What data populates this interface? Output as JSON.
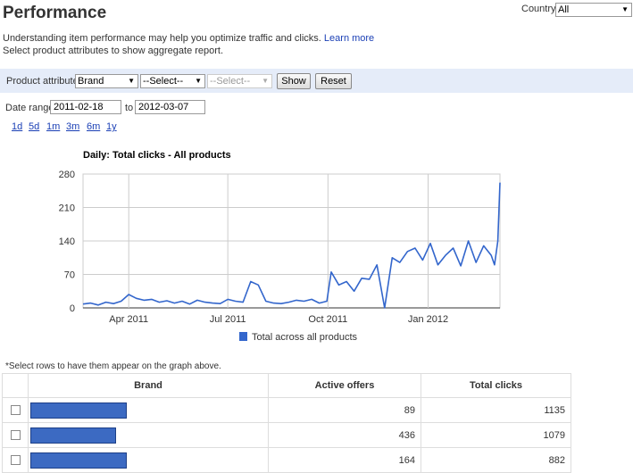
{
  "header": {
    "title": "Performance",
    "country_label": "Country:",
    "country_value": "All"
  },
  "intro": {
    "line1": "Understanding item performance may help you optimize traffic and clicks.",
    "learn_more": "Learn more",
    "line2": "Select product attributes to show aggregate report."
  },
  "attribute_bar": {
    "label": "Product attribute:",
    "select1": "Brand",
    "select2": "--Select--",
    "select3": "--Select--",
    "show": "Show",
    "reset": "Reset"
  },
  "date_range": {
    "label": "Date range:",
    "from": "2011-02-18",
    "to_label": "to",
    "to": "2012-03-07",
    "quick_ranges": [
      "1d",
      "5d",
      "1m",
      "3m",
      "6m",
      "1y"
    ]
  },
  "colors": {
    "series": "#3366cc",
    "grid": "#cccccc",
    "attr_bar_bg": "#e5ecf9",
    "link": "#1a3fb5"
  },
  "chart_data": {
    "type": "line",
    "title": "Daily: Total clicks - All products",
    "x_tick_labels": [
      "Apr 2011",
      "Jul 2011",
      "Oct 2011",
      "Jan 2012"
    ],
    "y_ticks": [
      0,
      70,
      140,
      210,
      280
    ],
    "ylim": [
      0,
      280
    ],
    "xlim": [
      "2011-02-18",
      "2012-03-07"
    ],
    "grid": true,
    "legend_position": "bottom",
    "series": [
      {
        "name": "Total across all products",
        "x": [
          "2011-02-18",
          "2011-02-25",
          "2011-03-04",
          "2011-03-11",
          "2011-03-18",
          "2011-03-25",
          "2011-04-01",
          "2011-04-08",
          "2011-04-15",
          "2011-04-22",
          "2011-04-29",
          "2011-05-06",
          "2011-05-13",
          "2011-05-20",
          "2011-05-27",
          "2011-06-03",
          "2011-06-10",
          "2011-06-17",
          "2011-06-24",
          "2011-07-01",
          "2011-07-08",
          "2011-07-15",
          "2011-07-22",
          "2011-07-29",
          "2011-08-05",
          "2011-08-12",
          "2011-08-19",
          "2011-08-26",
          "2011-09-02",
          "2011-09-09",
          "2011-09-16",
          "2011-09-23",
          "2011-09-30",
          "2011-10-04",
          "2011-10-11",
          "2011-10-18",
          "2011-10-25",
          "2011-11-01",
          "2011-11-08",
          "2011-11-15",
          "2011-11-22",
          "2011-11-29",
          "2011-12-06",
          "2011-12-13",
          "2011-12-20",
          "2011-12-27",
          "2012-01-03",
          "2012-01-10",
          "2012-01-17",
          "2012-01-24",
          "2012-01-31",
          "2012-02-07",
          "2012-02-14",
          "2012-02-21",
          "2012-02-28",
          "2012-03-02",
          "2012-03-05",
          "2012-03-07"
        ],
        "values": [
          8,
          10,
          6,
          12,
          9,
          14,
          28,
          20,
          16,
          18,
          12,
          15,
          10,
          14,
          8,
          16,
          12,
          10,
          9,
          18,
          14,
          12,
          55,
          48,
          14,
          10,
          9,
          12,
          16,
          14,
          18,
          10,
          14,
          75,
          48,
          55,
          35,
          62,
          60,
          90,
          0,
          105,
          95,
          118,
          125,
          100,
          135,
          90,
          110,
          125,
          88,
          140,
          95,
          130,
          110,
          90,
          140,
          262
        ]
      }
    ]
  },
  "table": {
    "note": "*Select rows to have them appear on the graph above.",
    "columns": [
      "Brand",
      "Active offers",
      "Total clicks"
    ],
    "rows": [
      {
        "active_offers": "89",
        "total_clicks": "1135",
        "bar_fraction": 1.0
      },
      {
        "active_offers": "436",
        "total_clicks": "1079",
        "bar_fraction": 0.89
      },
      {
        "active_offers": "164",
        "total_clicks": "882",
        "bar_fraction": 1.0
      }
    ]
  }
}
